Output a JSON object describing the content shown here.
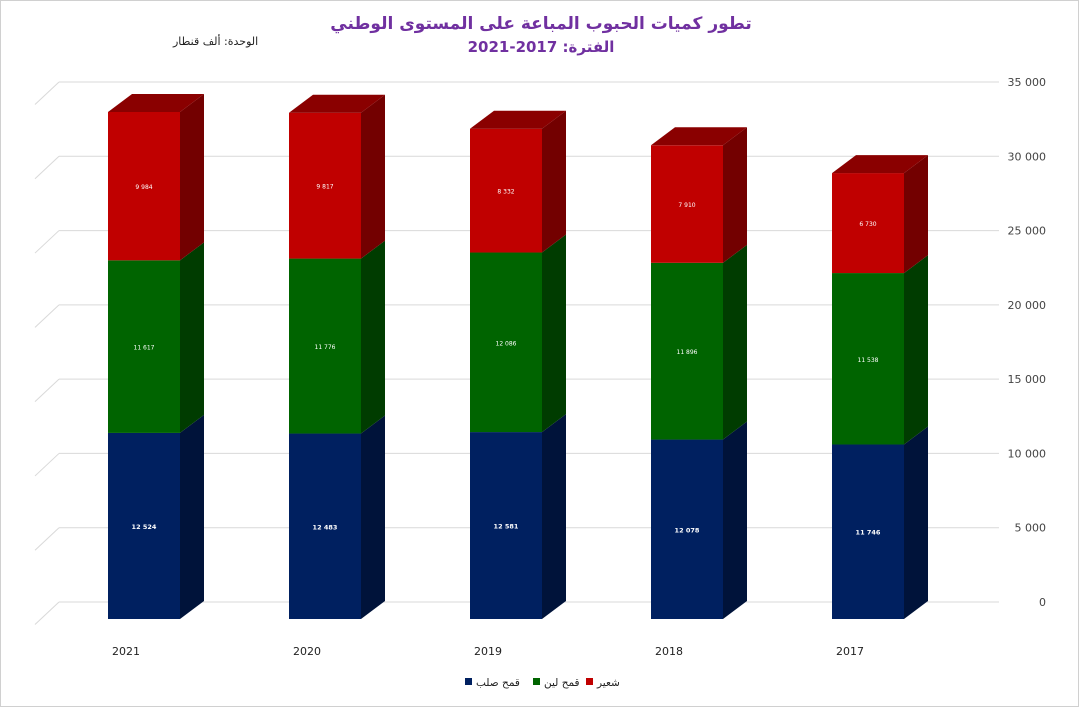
{
  "chart_data": {
    "type": "bar",
    "stacked": true,
    "three_d": true,
    "title": "تطور كميات الحبوب المباعة على المستوى الوطني",
    "subtitle": "الفترة: 2017-2021",
    "unit_label": "الوحدة: ألف قنطار",
    "categories": [
      "2021",
      "2020",
      "2019",
      "2018",
      "2017"
    ],
    "series": [
      {
        "name": "قمح صلب",
        "color": "#002060",
        "values": [
          12524,
          12483,
          12581,
          12078,
          11746
        ],
        "labels": [
          "12 524",
          "12 483",
          "12 581",
          "12 078",
          "11 746"
        ]
      },
      {
        "name": "قمح لين",
        "color": "#006400",
        "values": [
          11617,
          11776,
          12086,
          11896,
          11538
        ],
        "labels": [
          "11 617",
          "11 776",
          "12 086",
          "11 896",
          "11 538"
        ]
      },
      {
        "name": "شعير",
        "color": "#c00000",
        "values": [
          9984,
          9817,
          8332,
          7910,
          6730
        ],
        "labels": [
          "9 984",
          "9 817",
          "8 332",
          "7 910",
          "6 730"
        ]
      }
    ],
    "y_axis": {
      "position": "right",
      "ylim": [
        0,
        35000
      ],
      "ticks": [
        0,
        5000,
        10000,
        15000,
        20000,
        25000,
        30000,
        35000
      ],
      "tick_labels": [
        "0",
        "5 000",
        "10 000",
        "15 000",
        "20 000",
        "25 000",
        "30 000",
        "35 000"
      ]
    },
    "grid": true,
    "legend_position": "bottom"
  }
}
